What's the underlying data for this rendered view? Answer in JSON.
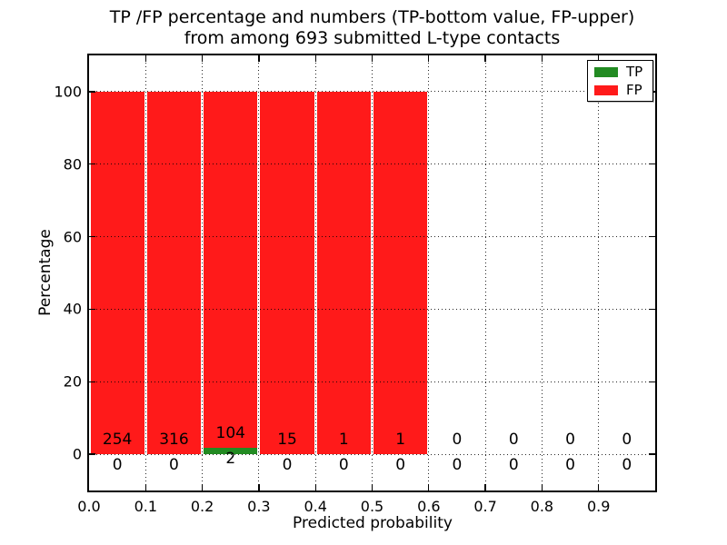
{
  "figure": {
    "title_line1": "TP /FP percentage and numbers (TP-bottom value, FP-upper)",
    "title_line2": "from among 693 submitted L-type contacts",
    "background": "#ffffff",
    "text_color": "#000000"
  },
  "chart_data": {
    "type": "bar",
    "stacked": true,
    "title": "TP /FP percentage and numbers (TP-bottom value, FP-upper)\nfrom among 693 submitted L-type contacts",
    "xlabel": "Predicted probability",
    "ylabel": "Percentage",
    "xlim": [
      0.0,
      1.0
    ],
    "ylim": [
      -10,
      110
    ],
    "x_tick_labels": [
      "0.0",
      "0.1",
      "0.2",
      "0.3",
      "0.4",
      "0.5",
      "0.6",
      "0.7",
      "0.8",
      "0.9"
    ],
    "x_tick_values": [
      0.0,
      0.1,
      0.2,
      0.3,
      0.4,
      0.5,
      0.6,
      0.7,
      0.8,
      0.9
    ],
    "y_tick_labels": [
      "0",
      "20",
      "40",
      "60",
      "80",
      "100"
    ],
    "y_tick_values": [
      0,
      20,
      40,
      60,
      80,
      100
    ],
    "grid": "dotted",
    "grid_above_bars": true,
    "bin_width": 0.1,
    "bin_starts": [
      0.0,
      0.1,
      0.2,
      0.3,
      0.4,
      0.5,
      0.6,
      0.7,
      0.8,
      0.9
    ],
    "series": [
      {
        "name": "TP",
        "color": "#228b22",
        "counts": [
          0,
          0,
          2,
          0,
          0,
          0,
          0,
          0,
          0,
          0
        ]
      },
      {
        "name": "FP",
        "color": "#ff1a1a",
        "counts": [
          254,
          316,
          104,
          15,
          1,
          1,
          0,
          0,
          0,
          0
        ]
      }
    ],
    "bar_note": "bars show TP% (bottom, green) stacked with FP% (top, red), totaling 100% per non-empty bin",
    "legend": {
      "position": "upper right",
      "entries": [
        "TP",
        "FP"
      ]
    },
    "total_contacts": 693
  }
}
